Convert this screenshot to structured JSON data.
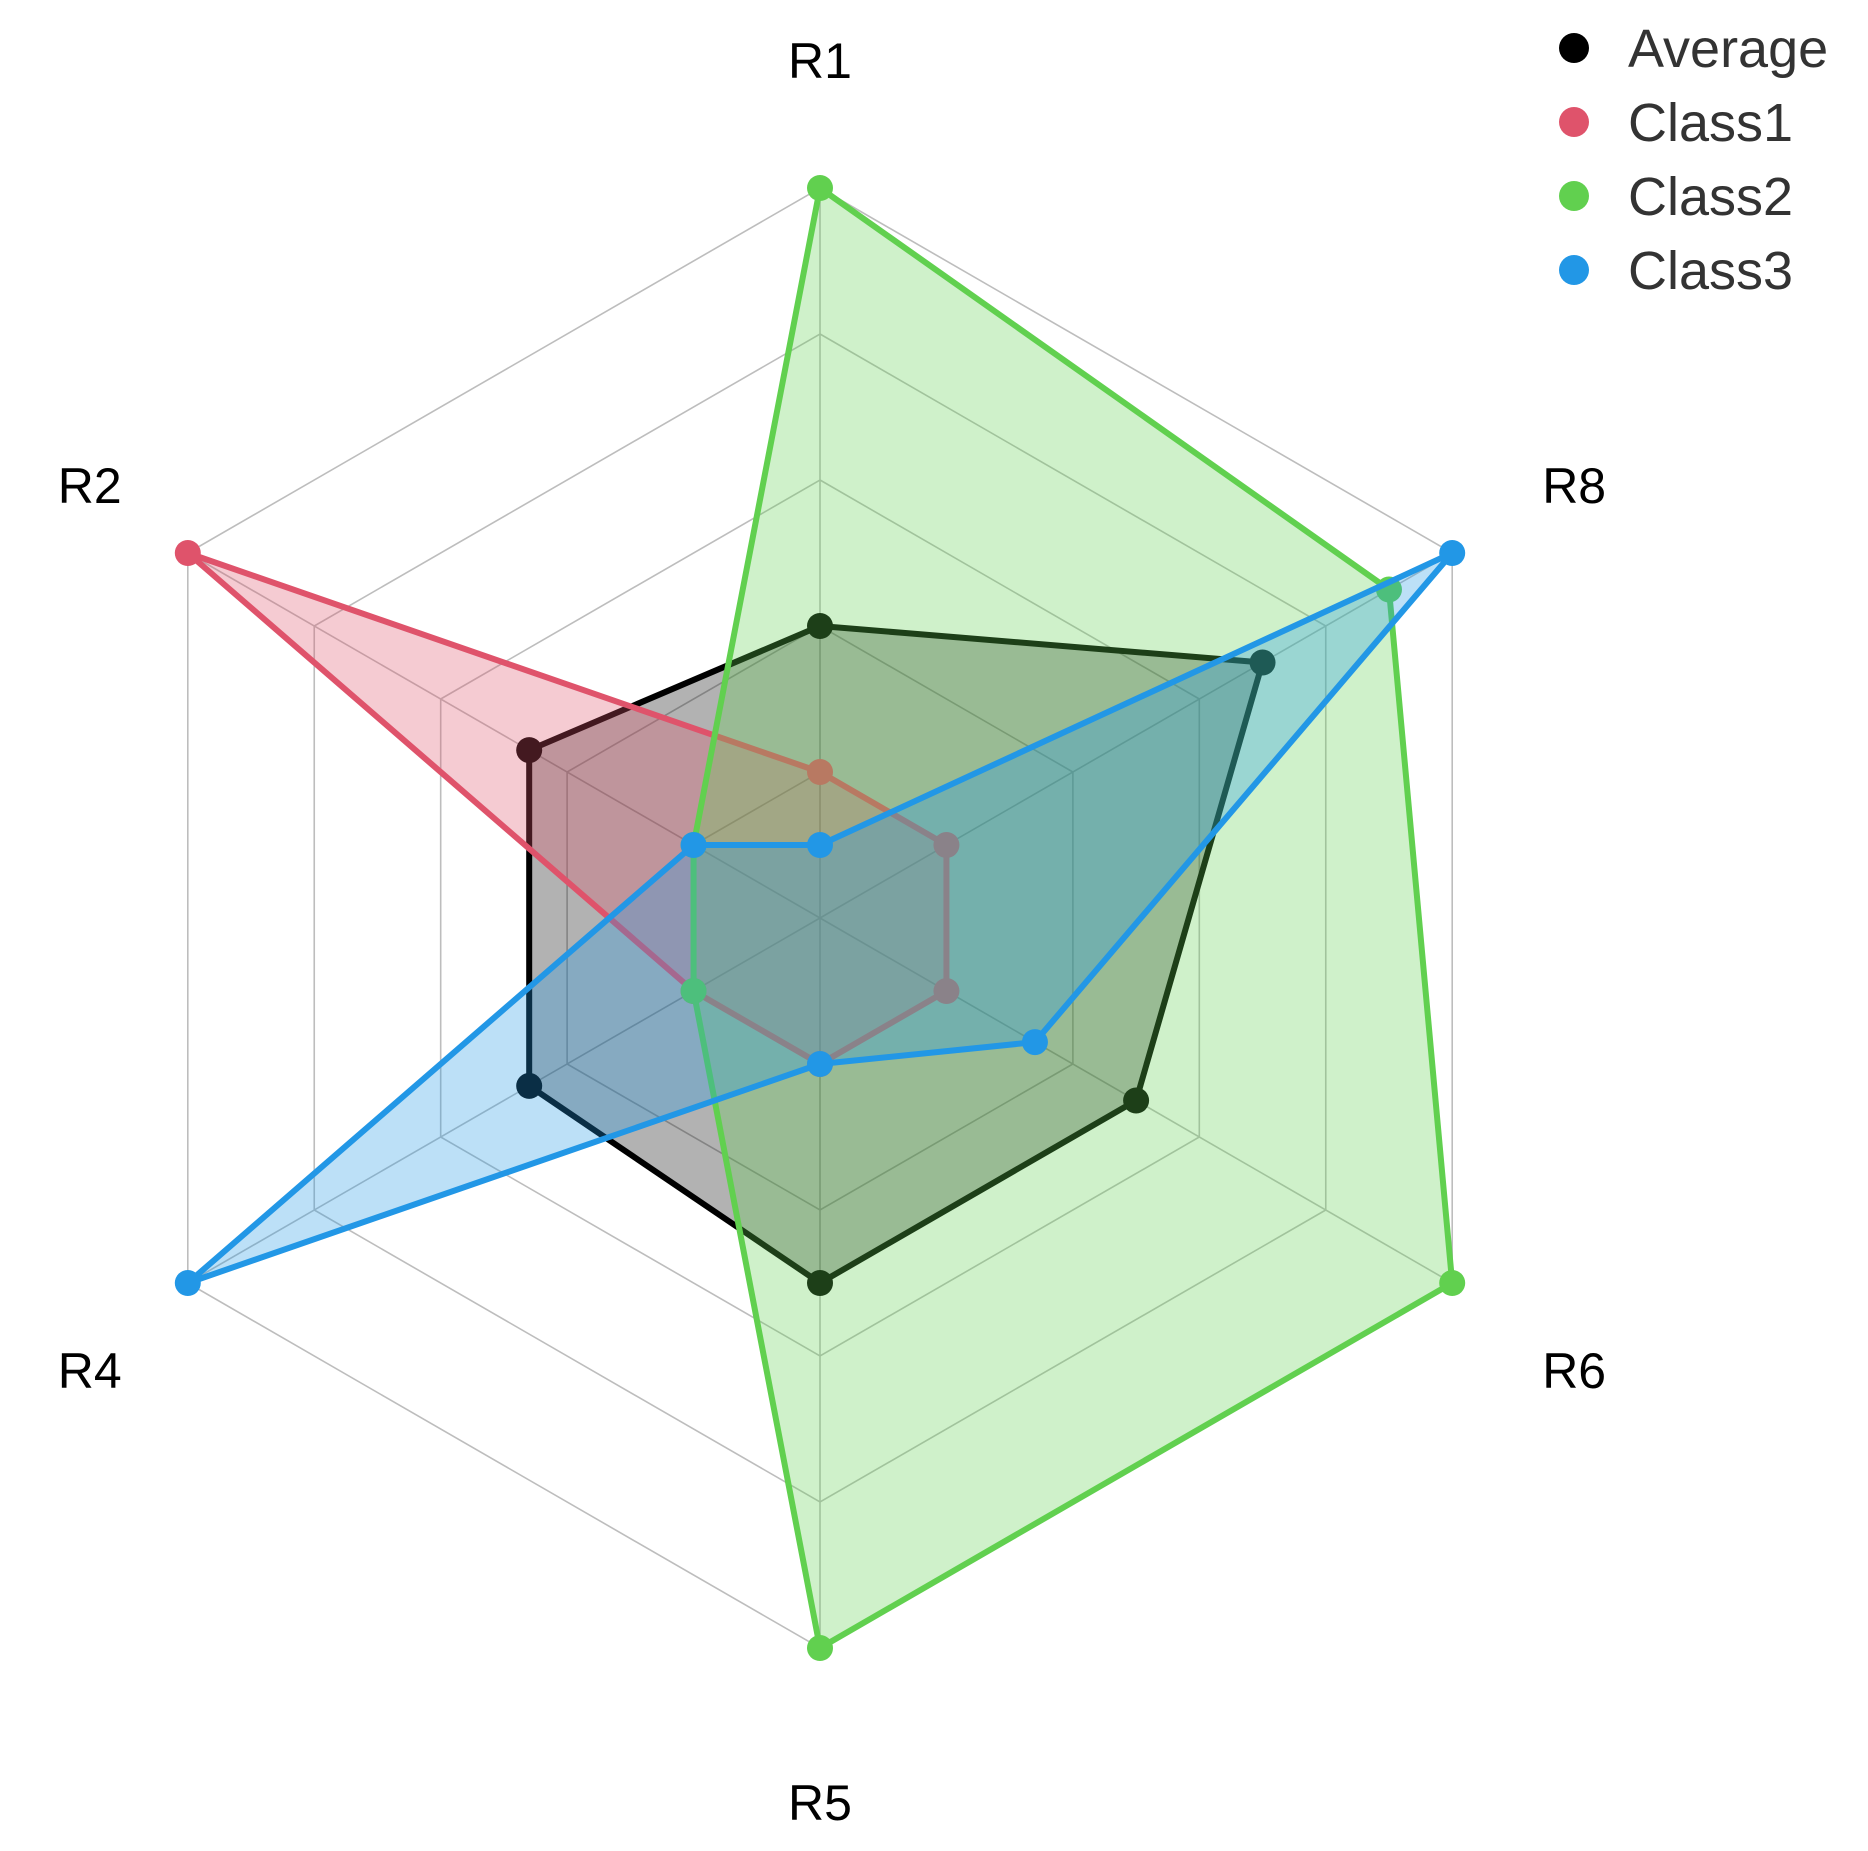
{
  "chart_data": {
    "type": "radar",
    "axes": [
      "R1",
      "R8",
      "R6",
      "R5",
      "R4",
      "R2"
    ],
    "rlim": [
      0,
      5
    ],
    "grid_levels": 5,
    "grid": true,
    "legend_position": "top-right",
    "series": [
      {
        "name": "Average",
        "color": "#000000",
        "fill_opacity": 0.3,
        "values": [
          2.0,
          3.5,
          2.5,
          2.5,
          2.3,
          2.3
        ]
      },
      {
        "name": "Class1",
        "color": "#DF536B",
        "fill_opacity": 0.3,
        "values": [
          1.0,
          1.0,
          1.0,
          1.0,
          1.0,
          5.0
        ]
      },
      {
        "name": "Class2",
        "color": "#61D04F",
        "fill_opacity": 0.3,
        "values": [
          5.0,
          4.5,
          5.0,
          5.0,
          1.0,
          1.0
        ]
      },
      {
        "name": "Class3",
        "color": "#2297E6",
        "fill_opacity": 0.3,
        "values": [
          0.5,
          5.0,
          1.7,
          1.0,
          5.0,
          1.0
        ]
      }
    ]
  }
}
